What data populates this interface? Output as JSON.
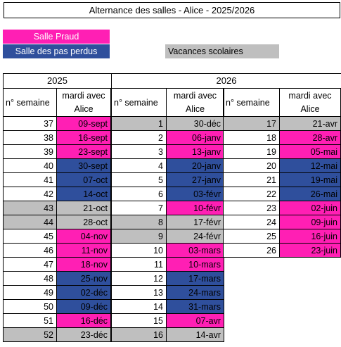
{
  "title": "Alternance des salles - Alice - 2025/2026",
  "legend": {
    "praud": "Salle Praud",
    "pas_perdus": "Salle des pas perdus",
    "vacances": "Vacances scolaires"
  },
  "colors": {
    "praud": "#ff1fb4",
    "pas_perdus": "#2f4f9c",
    "vacances": "#bfbfbf"
  },
  "years": {
    "y2025": "2025",
    "y2026": "2026"
  },
  "headers": {
    "week": "n° semaine",
    "date_line1": "mardi avec",
    "date_line2": "Alice"
  },
  "col2025": [
    {
      "w": "37",
      "d": "09-sept",
      "c": "praud"
    },
    {
      "w": "38",
      "d": "16-sept",
      "c": "praud"
    },
    {
      "w": "39",
      "d": "23-sept",
      "c": "praud"
    },
    {
      "w": "40",
      "d": "30-sept",
      "c": "pas"
    },
    {
      "w": "41",
      "d": "07-oct",
      "c": "pas"
    },
    {
      "w": "42",
      "d": "14-oct",
      "c": "pas"
    },
    {
      "w": "43",
      "d": "21-oct",
      "c": "vac",
      "wv": true
    },
    {
      "w": "44",
      "d": "28-oct",
      "c": "vac",
      "wv": true
    },
    {
      "w": "45",
      "d": "04-nov",
      "c": "praud"
    },
    {
      "w": "46",
      "d": "11-nov",
      "c": "praud"
    },
    {
      "w": "47",
      "d": "18-nov",
      "c": "praud"
    },
    {
      "w": "48",
      "d": "25-nov",
      "c": "pas"
    },
    {
      "w": "49",
      "d": "02-déc",
      "c": "pas"
    },
    {
      "w": "50",
      "d": "09-déc",
      "c": "pas"
    },
    {
      "w": "51",
      "d": "16-déc",
      "c": "praud"
    },
    {
      "w": "52",
      "d": "23-déc",
      "c": "vac",
      "wv": true
    }
  ],
  "col2026a": [
    {
      "w": "1",
      "d": "30-déc",
      "c": "vac",
      "wv": true
    },
    {
      "w": "2",
      "d": "06-janv",
      "c": "praud"
    },
    {
      "w": "3",
      "d": "13-janv",
      "c": "praud"
    },
    {
      "w": "4",
      "d": "20-janv",
      "c": "pas"
    },
    {
      "w": "5",
      "d": "27-janv",
      "c": "pas"
    },
    {
      "w": "6",
      "d": "03-févr",
      "c": "pas"
    },
    {
      "w": "7",
      "d": "10-févr",
      "c": "praud"
    },
    {
      "w": "8",
      "d": "17-févr",
      "c": "vac",
      "wv": true
    },
    {
      "w": "9",
      "d": "24-févr",
      "c": "vac",
      "wv": true
    },
    {
      "w": "10",
      "d": "03-mars",
      "c": "praud"
    },
    {
      "w": "11",
      "d": "10-mars",
      "c": "praud"
    },
    {
      "w": "12",
      "d": "17-mars",
      "c": "pas"
    },
    {
      "w": "13",
      "d": "24-mars",
      "c": "pas"
    },
    {
      "w": "14",
      "d": "31-mars",
      "c": "pas"
    },
    {
      "w": "15",
      "d": "07-avr",
      "c": "praud"
    },
    {
      "w": "16",
      "d": "14-avr",
      "c": "vac",
      "wv": true
    }
  ],
  "col2026b": [
    {
      "w": "17",
      "d": "21-avr",
      "c": "vac",
      "wv": true
    },
    {
      "w": "18",
      "d": "28-avr",
      "c": "praud"
    },
    {
      "w": "19",
      "d": "05-mai",
      "c": "praud"
    },
    {
      "w": "20",
      "d": "12-mai",
      "c": "pas"
    },
    {
      "w": "21",
      "d": "19-mai",
      "c": "pas"
    },
    {
      "w": "22",
      "d": "26-mai",
      "c": "pas"
    },
    {
      "w": "23",
      "d": "02-juin",
      "c": "praud"
    },
    {
      "w": "24",
      "d": "09-juin",
      "c": "praud"
    },
    {
      "w": "25",
      "d": "16-juin",
      "c": "praud"
    },
    {
      "w": "26",
      "d": "23-juin",
      "c": "praud"
    }
  ]
}
